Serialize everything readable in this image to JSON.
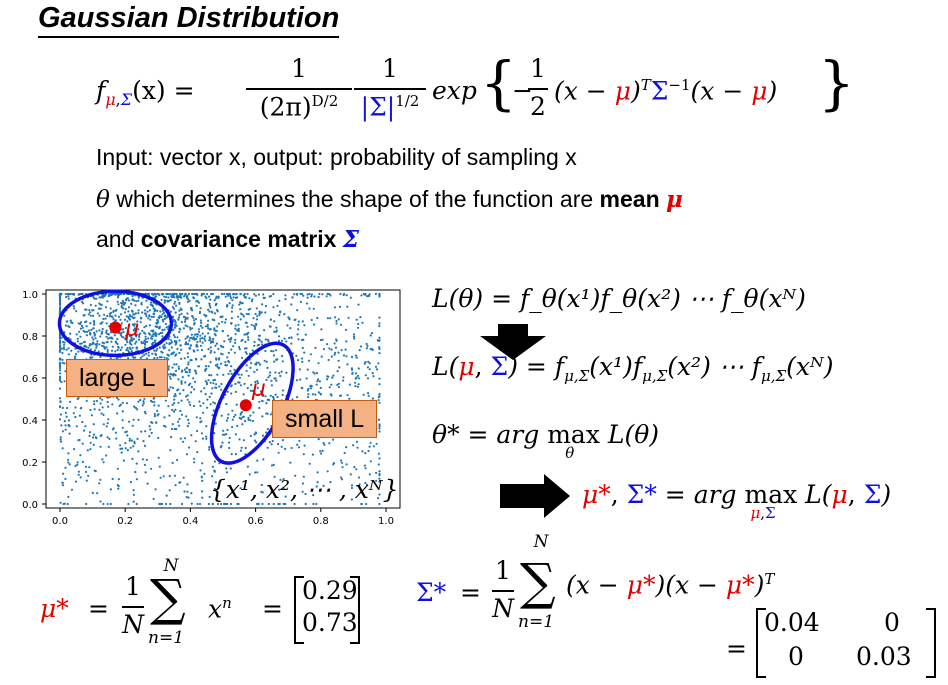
{
  "title": "Gaussian Distribution",
  "formula": {
    "lhs": "f",
    "lhs_sub": "μ,Σ",
    "lhs_arg": "(x) =",
    "frac1_num": "1",
    "frac1_den": "(2π)",
    "frac1_den_exp": "D/2",
    "frac2_num": "1",
    "frac2_den": "|Σ|",
    "frac2_den_exp": "1/2",
    "exp": "exp",
    "brace_open": "{",
    "minus": "−",
    "half_num": "1",
    "half_den": "2",
    "body_a": "(x − ",
    "mu": "μ",
    "body_b": ")",
    "T": "T",
    "sigma_inv": "Σ",
    "inv": "−1",
    "body_c": "(x − ",
    "body_d": ")",
    "brace_close": "}"
  },
  "text": {
    "line1": "Input: vector x, output: probability of sampling x",
    "line2_a": "θ",
    "line2_b": " which determines the shape of the function are ",
    "line2_c": "mean",
    "line2_mu": "μ",
    "line3_a": "and ",
    "line3_b": "covariance matrix",
    "line3_sigma": "Σ"
  },
  "chart_data": {
    "type": "scatter",
    "xticks": [
      "0.0",
      "0.2",
      "0.4",
      "0.6",
      "0.8",
      "1.0"
    ],
    "yticks": [
      "0.0",
      "0.2",
      "0.4",
      "0.6",
      "0.8",
      "1.0"
    ],
    "xlim": [
      0,
      1
    ],
    "ylim": [
      0,
      1
    ],
    "point_color": "#1f77b4",
    "mu_label": "μ",
    "large_box": "large L",
    "small_box": "small L",
    "set_label": "{x¹, x², ⋯ , xᴺ}",
    "mu_large": [
      0.17,
      0.84
    ],
    "mu_small": [
      0.57,
      0.47
    ]
  },
  "equations": {
    "L_theta": "L(θ) = f_θ(x¹)f_θ(x²) ⋯ f_θ(xᴺ)",
    "L_mu_a": "L(",
    "L_mu_mu": "μ",
    "L_mu_comma": ", ",
    "L_mu_sigma": "Σ",
    "L_mu_b": ") = f",
    "L_mu_sub": "μ,Σ",
    "L_mu_c": "(x¹)f",
    "L_mu_d": "(x²) ⋯ f",
    "L_mu_e": "(xᴺ)",
    "theta_star": "θ* = arg max L(θ)",
    "theta_star_a": "θ",
    "theta_star_b": "* = ",
    "arg": "arg",
    "max": "max",
    "max_sub_theta": "θ",
    "theta_star_c": "L(θ)",
    "mu_star": "μ*",
    "sigma_star": "Σ*",
    "arg_eq": " = ",
    "max_sub_mu": "μ,Σ",
    "L_paren_a": "L(",
    "L_paren_b": ")",
    "comma": ", "
  },
  "estimates": {
    "mu_star": "μ*",
    "eq": "=",
    "frac_num": "1",
    "frac_den": "N",
    "sum_top": "N",
    "sum_sym": "∑",
    "sum_bottom": "n=1",
    "x_n": "x",
    "x_n_sup": "n",
    "mu_vec": [
      "0.29",
      "0.73"
    ],
    "sigma_star": "Σ*",
    "sigma_body_a": "(x − ",
    "sigma_body_b": ")(x − ",
    "sigma_body_c": ")",
    "sigma_T": "T",
    "mu_ref": "μ*",
    "sigma_mat": [
      [
        "0.04",
        "0"
      ],
      [
        "0",
        "0.03"
      ]
    ]
  }
}
